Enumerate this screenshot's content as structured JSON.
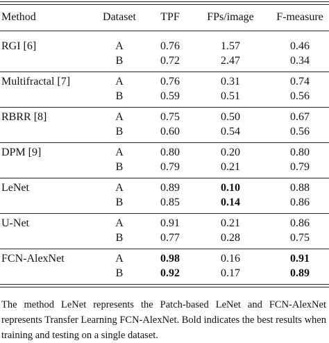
{
  "table": {
    "columns": [
      "Method",
      "Dataset",
      "TPF",
      "FPs/image",
      "F-measure"
    ],
    "groups": [
      {
        "method": "RGI [6]",
        "rows": [
          {
            "cells": [
              "A",
              "0.76",
              "1.57",
              "0.46"
            ],
            "bold": [
              false,
              false,
              false,
              false
            ]
          },
          {
            "cells": [
              "B",
              "0.72",
              "2.47",
              "0.34"
            ],
            "bold": [
              false,
              false,
              false,
              false
            ]
          }
        ]
      },
      {
        "method": "Multifractal [7]",
        "rows": [
          {
            "cells": [
              "A",
              "0.76",
              "0.31",
              "0.74"
            ],
            "bold": [
              false,
              false,
              false,
              false
            ]
          },
          {
            "cells": [
              "B",
              "0.59",
              "0.51",
              "0.56"
            ],
            "bold": [
              false,
              false,
              false,
              false
            ]
          }
        ]
      },
      {
        "method": "RBRR [8]",
        "rows": [
          {
            "cells": [
              "A",
              "0.75",
              "0.50",
              "0.67"
            ],
            "bold": [
              false,
              false,
              false,
              false
            ]
          },
          {
            "cells": [
              "B",
              "0.60",
              "0.54",
              "0.56"
            ],
            "bold": [
              false,
              false,
              false,
              false
            ]
          }
        ]
      },
      {
        "method": "DPM [9]",
        "rows": [
          {
            "cells": [
              "A",
              "0.80",
              "0.20",
              "0.80"
            ],
            "bold": [
              false,
              false,
              false,
              false
            ]
          },
          {
            "cells": [
              "B",
              "0.79",
              "0.21",
              "0.79"
            ],
            "bold": [
              false,
              false,
              false,
              false
            ]
          }
        ]
      },
      {
        "method": "LeNet",
        "rows": [
          {
            "cells": [
              "A",
              "0.89",
              "0.10",
              "0.88"
            ],
            "bold": [
              false,
              false,
              true,
              false
            ]
          },
          {
            "cells": [
              "B",
              "0.85",
              "0.14",
              "0.86"
            ],
            "bold": [
              false,
              false,
              true,
              false
            ]
          }
        ]
      },
      {
        "method": "U-Net",
        "rows": [
          {
            "cells": [
              "A",
              "0.91",
              "0.21",
              "0.86"
            ],
            "bold": [
              false,
              false,
              false,
              false
            ]
          },
          {
            "cells": [
              "B",
              "0.77",
              "0.28",
              "0.75"
            ],
            "bold": [
              false,
              false,
              false,
              false
            ]
          }
        ]
      },
      {
        "method": "FCN-AlexNet",
        "rows": [
          {
            "cells": [
              "A",
              "0.98",
              "0.16",
              "0.91"
            ],
            "bold": [
              false,
              true,
              false,
              true
            ]
          },
          {
            "cells": [
              "B",
              "0.92",
              "0.17",
              "0.89"
            ],
            "bold": [
              false,
              true,
              false,
              true
            ]
          }
        ]
      }
    ]
  },
  "caption": "The method LeNet represents the Patch-based LeNet and FCN-AlexNet represents Transfer Learning FCN-AlexNet. Bold indicates the best results when training and testing on a single dataset."
}
